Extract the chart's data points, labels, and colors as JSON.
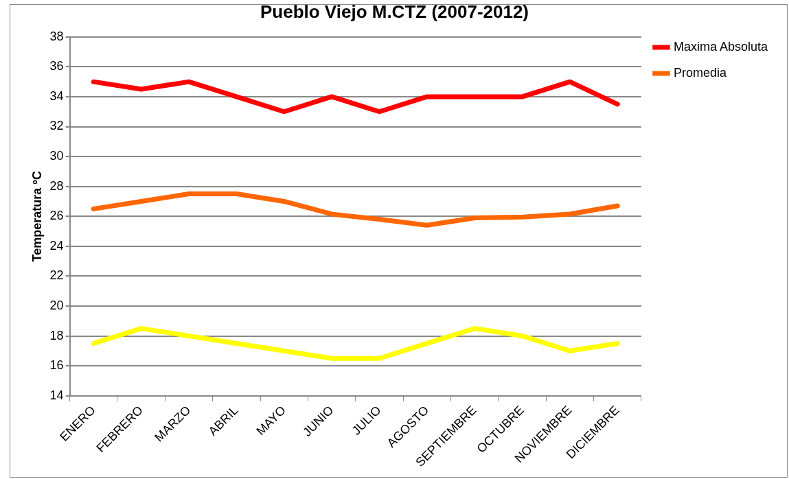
{
  "chart_data": {
    "type": "line",
    "title": "Pueblo Viejo M.CTZ (2007-2012)",
    "ylabel": "Temperatura ºC",
    "categories": [
      "ENERO",
      "FEBRERO",
      "MARZO",
      "ABRIL",
      "MAYO",
      "JUNIO",
      "JULIO",
      "AGOSTO",
      "SEPTIEMBRE",
      "OCTUBRE",
      "NOVIEMBRE",
      "DICIEMBRE"
    ],
    "series": [
      {
        "name": "Maxima Absoluta",
        "color": "#ff0000",
        "values": [
          35,
          34.5,
          35,
          34,
          33,
          34,
          33,
          34,
          34,
          34,
          35,
          33.5
        ]
      },
      {
        "name": "Promedia",
        "color": "#ff6600",
        "values": [
          26.5,
          27,
          27.5,
          27.5,
          27,
          26.15,
          25.8,
          25.4,
          25.9,
          25.95,
          26.15,
          26.7
        ]
      },
      {
        "color": "#ffff00",
        "values": [
          17.5,
          18.5,
          18,
          17.5,
          17,
          16.5,
          16.5,
          17.5,
          18.5,
          18,
          17,
          17.5
        ]
      }
    ],
    "ylim": [
      14,
      38
    ],
    "yticks": [
      14,
      16,
      18,
      20,
      22,
      24,
      26,
      28,
      30,
      32,
      34,
      36,
      38
    ],
    "grid": "y",
    "legend": "right",
    "marker": "none",
    "line_style": "solid"
  }
}
